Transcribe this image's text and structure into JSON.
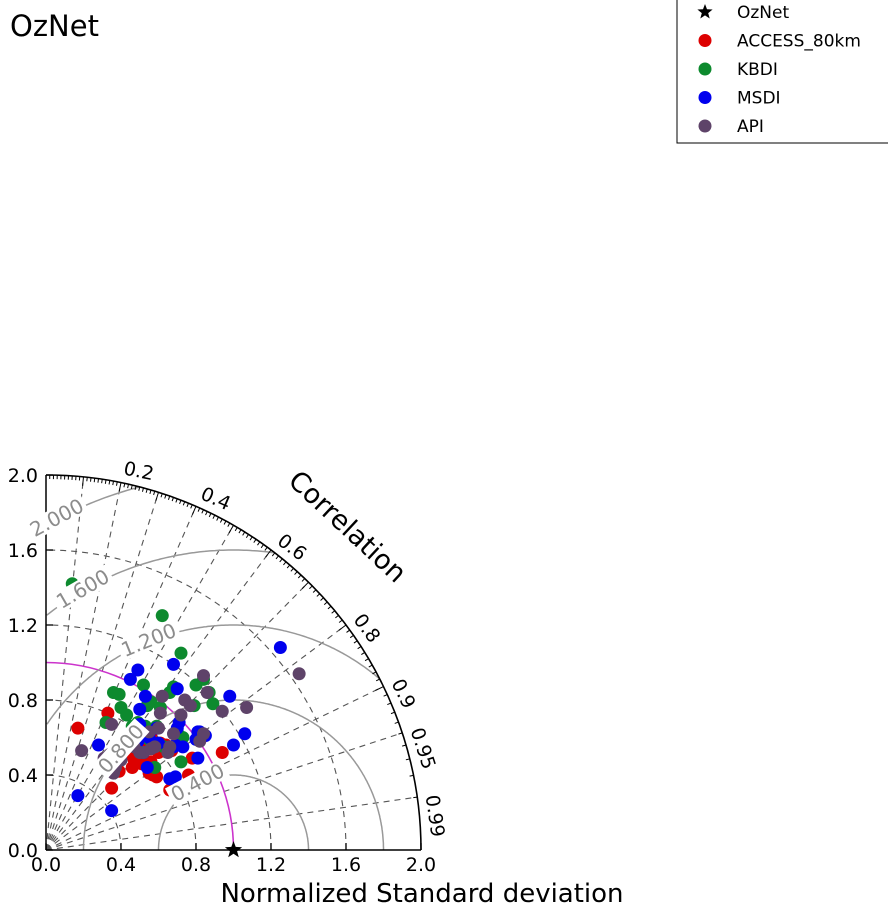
{
  "chart_data": {
    "type": "scatter",
    "subtype": "taylor-diagram",
    "title": "OzNet",
    "xlabel": "Normalized Standard deviation",
    "arc_label": "Correlation",
    "std_range": [
      0,
      2.0
    ],
    "std_ticks": [
      "0.0",
      "0.4",
      "0.8",
      "1.2",
      "1.6",
      "2.0"
    ],
    "correlation_ticks": [
      {
        "value": 0.2,
        "label": "0.2"
      },
      {
        "value": 0.4,
        "label": "0.4"
      },
      {
        "value": 0.6,
        "label": "0.6"
      },
      {
        "value": 0.8,
        "label": "0.8"
      },
      {
        "value": 0.9,
        "label": "0.9"
      },
      {
        "value": 0.95,
        "label": "0.95"
      },
      {
        "value": 0.99,
        "label": "0.99"
      }
    ],
    "rms_contours": [
      {
        "value": 0.4,
        "label": "0.400"
      },
      {
        "value": 0.8,
        "label": "0.800"
      },
      {
        "value": 1.2,
        "label": "1.200"
      },
      {
        "value": 1.6,
        "label": "1.600"
      },
      {
        "value": 2.0,
        "label": "2.000"
      }
    ],
    "reference": {
      "name": "OzNet",
      "std": 1.0,
      "corr": 1.0
    },
    "reference_arc_color": "#cc33cc",
    "legend_position": "top-right",
    "series": [
      {
        "name": "ACCESS_80km",
        "color": "#dd0000",
        "points": [
          [
            0.17,
            0.65
          ],
          [
            0.33,
            0.73
          ],
          [
            0.35,
            0.33
          ],
          [
            0.37,
            0.45
          ],
          [
            0.39,
            0.42
          ],
          [
            0.39,
            0.49
          ],
          [
            0.4,
            0.56
          ],
          [
            0.41,
            0.51
          ],
          [
            0.44,
            0.55
          ],
          [
            0.46,
            0.44
          ],
          [
            0.47,
            0.48
          ],
          [
            0.48,
            0.53
          ],
          [
            0.49,
            0.55
          ],
          [
            0.5,
            0.58
          ],
          [
            0.51,
            0.46
          ],
          [
            0.52,
            0.53
          ],
          [
            0.52,
            0.48
          ],
          [
            0.53,
            0.46
          ],
          [
            0.54,
            0.56
          ],
          [
            0.55,
            0.41
          ],
          [
            0.56,
            0.47
          ],
          [
            0.57,
            0.4
          ],
          [
            0.58,
            0.55
          ],
          [
            0.59,
            0.39
          ],
          [
            0.6,
            0.52
          ],
          [
            0.61,
            0.57
          ],
          [
            0.62,
            0.55
          ],
          [
            0.64,
            0.56
          ],
          [
            0.66,
            0.32
          ],
          [
            0.67,
            0.53
          ],
          [
            0.7,
            0.57
          ],
          [
            0.76,
            0.4
          ],
          [
            0.78,
            0.49
          ],
          [
            0.94,
            0.52
          ],
          [
            0.56,
            0.62
          ],
          [
            0.45,
            0.51
          ]
        ]
      },
      {
        "name": "KBDI",
        "color": "#0d8a2e",
        "points": [
          [
            0.14,
            1.42
          ],
          [
            0.32,
            0.68
          ],
          [
            0.36,
            0.84
          ],
          [
            0.39,
            0.83
          ],
          [
            0.4,
            0.76
          ],
          [
            0.43,
            0.72
          ],
          [
            0.46,
            0.66
          ],
          [
            0.46,
            0.63
          ],
          [
            0.49,
            0.68
          ],
          [
            0.52,
            0.88
          ],
          [
            0.53,
            0.66
          ],
          [
            0.54,
            0.77
          ],
          [
            0.55,
            0.59
          ],
          [
            0.56,
            0.79
          ],
          [
            0.58,
            0.44
          ],
          [
            0.59,
            0.66
          ],
          [
            0.61,
            0.76
          ],
          [
            0.62,
            1.25
          ],
          [
            0.63,
            0.55
          ],
          [
            0.66,
            0.84
          ],
          [
            0.68,
            0.87
          ],
          [
            0.7,
            0.63
          ],
          [
            0.72,
            0.47
          ],
          [
            0.72,
            1.05
          ],
          [
            0.73,
            0.6
          ],
          [
            0.79,
            0.77
          ],
          [
            0.8,
            0.88
          ],
          [
            0.84,
            0.91
          ],
          [
            0.87,
            0.84
          ],
          [
            0.89,
            0.78
          ]
        ]
      },
      {
        "name": "MSDI",
        "color": "#0000ee",
        "points": [
          [
            0.17,
            0.29
          ],
          [
            0.28,
            0.56
          ],
          [
            0.35,
            0.21
          ],
          [
            0.45,
            0.91
          ],
          [
            0.49,
            0.96
          ],
          [
            0.49,
            0.58
          ],
          [
            0.5,
            0.67
          ],
          [
            0.5,
            0.75
          ],
          [
            0.52,
            0.52
          ],
          [
            0.53,
            0.82
          ],
          [
            0.54,
            0.44
          ],
          [
            0.55,
            0.6
          ],
          [
            0.57,
            0.56
          ],
          [
            0.59,
            0.65
          ],
          [
            0.6,
            0.57
          ],
          [
            0.66,
            0.38
          ],
          [
            0.68,
            0.99
          ],
          [
            0.68,
            0.55
          ],
          [
            0.69,
            0.39
          ],
          [
            0.69,
            0.56
          ],
          [
            0.7,
            0.65
          ],
          [
            0.7,
            0.86
          ],
          [
            0.71,
            0.68
          ],
          [
            0.73,
            0.55
          ],
          [
            0.8,
            0.59
          ],
          [
            0.81,
            0.63
          ],
          [
            0.81,
            0.49
          ],
          [
            0.82,
            0.63
          ],
          [
            0.85,
            0.61
          ],
          [
            0.98,
            0.82
          ],
          [
            1.0,
            0.56
          ],
          [
            1.06,
            0.62
          ],
          [
            1.25,
            1.08
          ]
        ]
      },
      {
        "name": "API",
        "color": "#5e4369",
        "points": [
          [
            0.19,
            0.53
          ],
          [
            0.31,
            0.49
          ],
          [
            0.33,
            0.47
          ],
          [
            0.34,
            0.51
          ],
          [
            0.35,
            0.67
          ],
          [
            0.36,
            0.41
          ],
          [
            0.37,
            0.44
          ],
          [
            0.38,
            0.52
          ],
          [
            0.39,
            0.53
          ],
          [
            0.4,
            0.48
          ],
          [
            0.43,
            0.55
          ],
          [
            0.47,
            0.55
          ],
          [
            0.5,
            0.52
          ],
          [
            0.52,
            0.52
          ],
          [
            0.55,
            0.63
          ],
          [
            0.56,
            0.54
          ],
          [
            0.58,
            0.55
          ],
          [
            0.6,
            0.65
          ],
          [
            0.61,
            0.73
          ],
          [
            0.62,
            0.82
          ],
          [
            0.65,
            0.52
          ],
          [
            0.66,
            0.55
          ],
          [
            0.68,
            0.62
          ],
          [
            0.72,
            0.72
          ],
          [
            0.74,
            0.8
          ],
          [
            0.77,
            0.77
          ],
          [
            0.82,
            0.58
          ],
          [
            0.84,
            0.62
          ],
          [
            0.84,
            0.93
          ],
          [
            0.86,
            0.84
          ],
          [
            0.94,
            0.74
          ],
          [
            1.07,
            0.76
          ],
          [
            1.35,
            0.94
          ]
        ]
      }
    ]
  }
}
